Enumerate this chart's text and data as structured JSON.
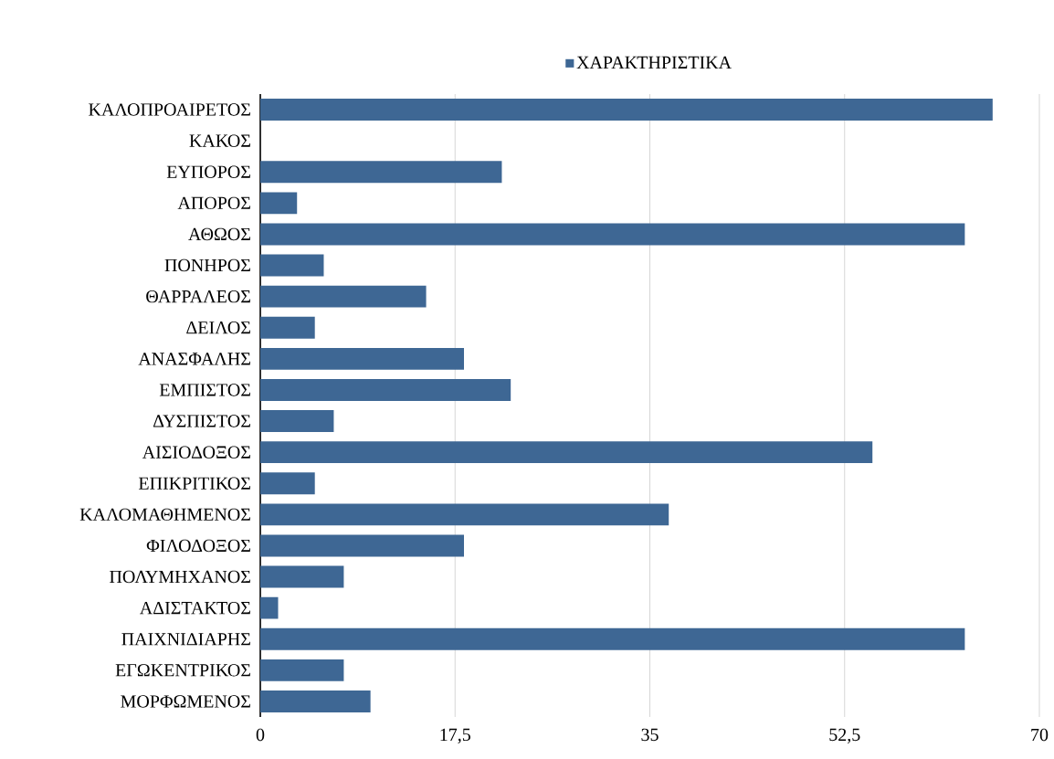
{
  "chart_data": {
    "type": "bar",
    "orientation": "horizontal",
    "categories": [
      "ΚΑΛΟΠΡΟΑΙΡΕΤΟΣ",
      "ΚΑΚΟΣ",
      "ΕΥΠΟΡΟΣ",
      "ΑΠΟΡΟΣ",
      "ΑΘΩΟΣ",
      "ΠΟΝΗΡΟΣ",
      "ΘΑΡΡΑΛΕΟΣ",
      "ΔΕΙΛΟΣ",
      "ΑΝΑΣΦΑΛΗΣ",
      "ΕΜΠΙΣΤΟΣ",
      "ΔΥΣΠΙΣΤΟΣ",
      "ΑΙΣΙΟΔΟΞΟΣ",
      "ΕΠΙΚΡΙΤΙΚΟΣ",
      "ΚΑΛΟΜΑΘΗΜΕΝΟΣ",
      "ΦΙΛΟΔΟΞΟΣ",
      "ΠΟΛΥΜΗΧΑΝΟΣ",
      "ΑΔΙΣΤΑΚΤΟΣ",
      "ΠΑΙΧΝΙΔΙΑΡΗΣ",
      "ΕΓΩΚΕΝΤΡΙΚΟΣ",
      "ΜΟΡΦΩΜΕΝΟΣ"
    ],
    "series": [
      {
        "name": "ΧΑΡΑΚΤΗΡΙΣΤΙΚΑ",
        "color": "#3e6794",
        "values": [
          65.8,
          0,
          21.7,
          3.3,
          63.3,
          5.7,
          14.9,
          4.9,
          18.3,
          22.5,
          6.6,
          55.0,
          4.9,
          36.7,
          18.3,
          7.5,
          1.6,
          63.3,
          7.5,
          9.9
        ]
      }
    ],
    "xlim": [
      0,
      70
    ],
    "xticks": [
      0,
      {
        "value": 17.5,
        "label": "17,5"
      },
      35,
      {
        "value": 52.5,
        "label": "52,5"
      },
      70
    ],
    "grid": "x",
    "legend": "top"
  }
}
